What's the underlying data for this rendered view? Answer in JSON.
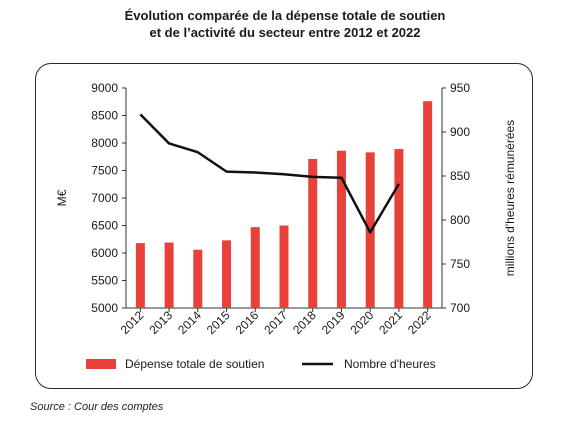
{
  "title_line1": "Évolution comparée de la dépense totale de soutien",
  "title_line2": "et de l’activité du secteur entre 2012 et 2022",
  "source": "Source : Cour des comptes",
  "colors": {
    "bar": "#e8413a",
    "line": "#111111"
  },
  "chart_data": {
    "type": "bar",
    "categories": [
      "2012",
      "2013",
      "2014",
      "2015",
      "2016",
      "2017",
      "2018",
      "2019",
      "2020",
      "2021",
      "2022"
    ],
    "series": [
      {
        "name": "Dépense totale de soutien",
        "type": "bar",
        "axis": "left",
        "values": [
          6180,
          6190,
          6060,
          6230,
          6470,
          6500,
          7710,
          7860,
          7830,
          7890,
          8760
        ]
      },
      {
        "name": "Nombre d'heures",
        "type": "line",
        "axis": "right",
        "values": [
          920,
          887,
          877,
          855,
          854,
          852,
          849,
          848,
          786,
          841,
          null
        ]
      }
    ],
    "ylabel": "M€",
    "y2label": "millions d'heures rémunérées",
    "ylim": [
      5000,
      9000
    ],
    "y2lim": [
      700,
      950
    ],
    "yticks": [
      5000,
      5500,
      6000,
      6500,
      7000,
      7500,
      8000,
      8500,
      9000
    ],
    "y2ticks": [
      700,
      750,
      800,
      850,
      900,
      950
    ],
    "legend_position": "bottom"
  }
}
